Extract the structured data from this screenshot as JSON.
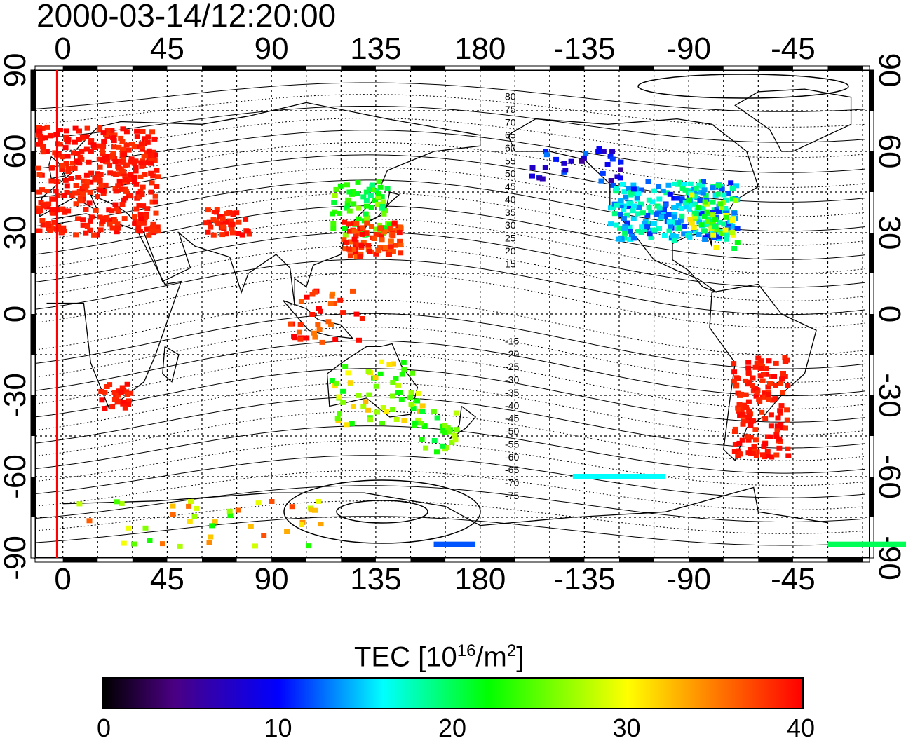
{
  "title": "2000-03-14/12:20:00",
  "x_ticks_top": [
    "0",
    "45",
    "90",
    "135",
    "180",
    "-135",
    "-90",
    "-45"
  ],
  "x_ticks_bottom": [
    "0",
    "45",
    "90",
    "135",
    "180",
    "-135",
    "-90",
    "-45"
  ],
  "y_ticks_left": [
    "90",
    "60",
    "30",
    "0",
    "-30",
    "-60",
    "-90"
  ],
  "y_ticks_right": [
    "90",
    "60",
    "30",
    "0",
    "-30",
    "-60",
    "-90"
  ],
  "contour_labels": [
    "80",
    "75",
    "70",
    "65",
    "60",
    "55",
    "50",
    "45",
    "40",
    "35",
    "30",
    "25",
    "20",
    "15",
    "-15",
    "-20",
    "-25",
    "-30",
    "-35",
    "-40",
    "-45",
    "-50",
    "-55",
    "-60",
    "-65",
    "-70",
    "-75"
  ],
  "colorbar": {
    "title_prefix": "TEC  [10",
    "title_sup1": "16",
    "title_mid": "/m",
    "title_sup2": "2",
    "title_suffix": "]",
    "ticks": [
      "0",
      "10",
      "20",
      "30",
      "40"
    ],
    "range": [
      0,
      40
    ]
  },
  "colors": {
    "marker_line": "#ff0000",
    "high": "#ff0000",
    "low": "#000000"
  },
  "map_data": {
    "lon_range": [
      -12,
      168
    ],
    "lat_range": [
      -90,
      90
    ],
    "marker_longitude": -2.5,
    "tec_regions": [
      {
        "name": "europe",
        "tec": 39
      },
      {
        "name": "east-asia",
        "tec": 24
      },
      {
        "name": "japan",
        "tec": 35
      },
      {
        "name": "north-america",
        "tec": 15
      },
      {
        "name": "south-america",
        "tec": 39
      },
      {
        "name": "australia",
        "tec": 26
      }
    ]
  }
}
